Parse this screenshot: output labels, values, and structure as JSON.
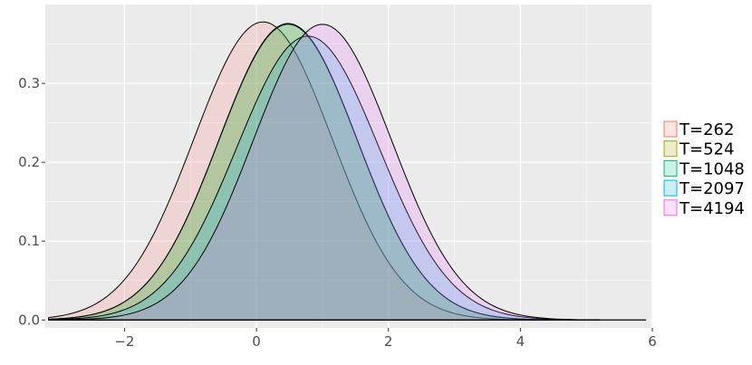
{
  "chart_data": {
    "type": "area",
    "title": "",
    "xlabel": "",
    "ylabel": "",
    "xlim": [
      -3.2,
      6.0
    ],
    "ylim": [
      -0.01,
      0.4
    ],
    "x_ticks": [
      -2,
      0,
      2,
      4,
      6
    ],
    "x_tick_labels": [
      "−2",
      "0",
      "2",
      "4",
      "6"
    ],
    "y_ticks": [
      0.0,
      0.1,
      0.2,
      0.3
    ],
    "y_tick_labels": [
      "0.0",
      "0.1",
      "0.2",
      "0.3"
    ],
    "grid": true,
    "legend_position": "right",
    "fill_opacity": 0.2,
    "background_color": "#ebebeb",
    "gridline_color": "#ffffff",
    "outline_color": "#000000",
    "series": [
      {
        "name": "T=262",
        "color": "#f8766d",
        "mean": 0.1,
        "sd": 1.05,
        "peak": 0.378,
        "x_min": -3.15,
        "x_max": 5.2
      },
      {
        "name": "T=524",
        "color": "#a3a500",
        "mean": 0.48,
        "sd": 1.05,
        "peak": 0.375,
        "x_min": -3.15,
        "x_max": 5.2
      },
      {
        "name": "T=1048",
        "color": "#00bf7d",
        "mean": 0.48,
        "sd": 1.05,
        "peak": 0.376,
        "x_min": -3.15,
        "x_max": 5.2
      },
      {
        "name": "T=2097",
        "color": "#00b0f6",
        "mean": 0.78,
        "sd": 1.08,
        "peak": 0.36,
        "x_min": -3.15,
        "x_max": 5.9
      },
      {
        "name": "T=4194",
        "color": "#e76bf3",
        "mean": 1.0,
        "sd": 1.05,
        "peak": 0.375,
        "x_min": -3.15,
        "x_max": 5.9
      }
    ]
  }
}
